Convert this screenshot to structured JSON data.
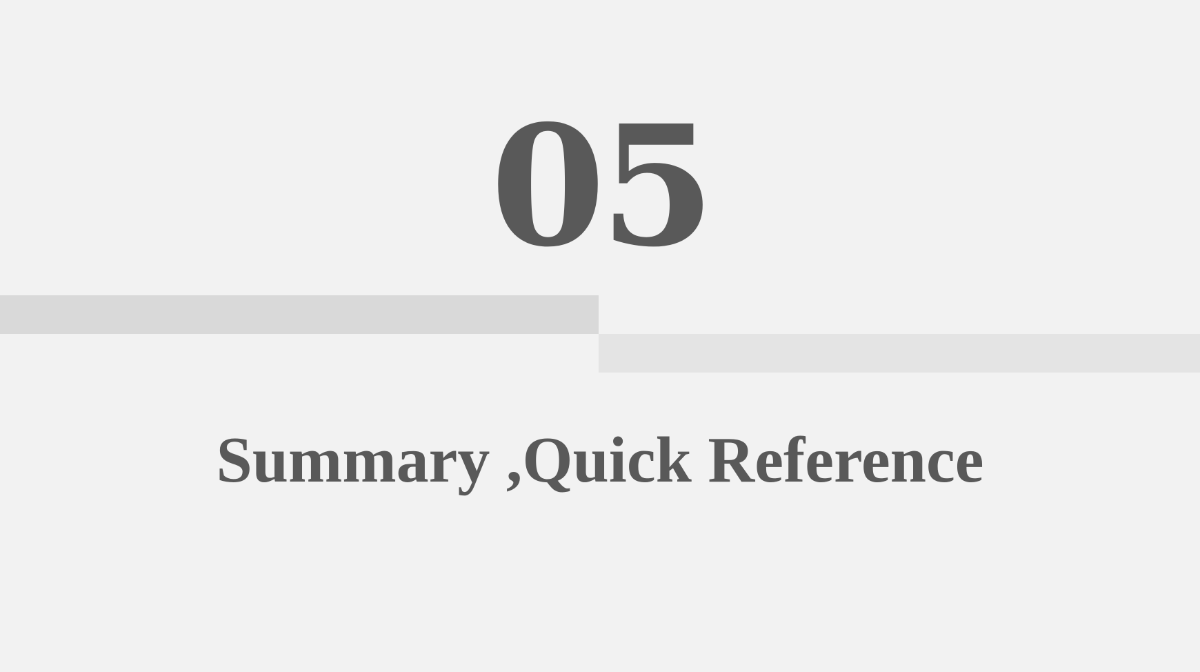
{
  "slide": {
    "section_number": "05",
    "section_title": "Summary ,Quick Reference"
  },
  "colors": {
    "background": "#f2f2f2",
    "text": "#595959",
    "band_left": "#d9d9d9",
    "band_right": "#e4e4e4"
  }
}
